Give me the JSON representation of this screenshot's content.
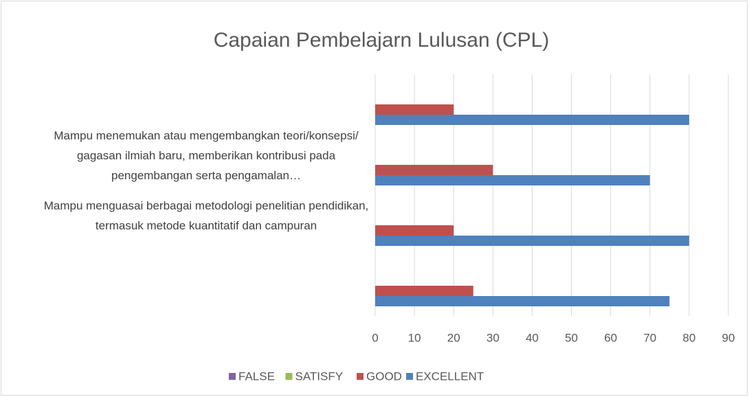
{
  "chart_data": {
    "type": "bar",
    "orientation": "horizontal",
    "title": "Capaian Pembelajarn Lulusan (CPL)",
    "categories": [
      null,
      "Mampu menguasai berbagai metodologi penelitian pendidikan, termasuk metode kuantitatif dan campuran",
      "Mampu menemukan atau mengembangkan teori/konsepsi/ gagasan ilmiah baru, memberikan kontribusi pada pengembangan serta pengamalan…",
      null
    ],
    "series": [
      {
        "name": "FALSE",
        "color": "#8064a2",
        "values": [
          0,
          0,
          0,
          0
        ]
      },
      {
        "name": "SATISFY",
        "color": "#9bbb59",
        "values": [
          0,
          0,
          0,
          0
        ]
      },
      {
        "name": "GOOD",
        "color": "#c0504d",
        "values": [
          25,
          20,
          30,
          20
        ]
      },
      {
        "name": "EXCELLENT",
        "color": "#4f81bd",
        "values": [
          75,
          80,
          70,
          80
        ]
      }
    ],
    "xlim": [
      0,
      90
    ],
    "xticks": [
      0,
      10,
      20,
      30,
      40,
      50,
      60,
      70,
      80,
      90
    ],
    "grid": true,
    "legend": "bottom"
  }
}
